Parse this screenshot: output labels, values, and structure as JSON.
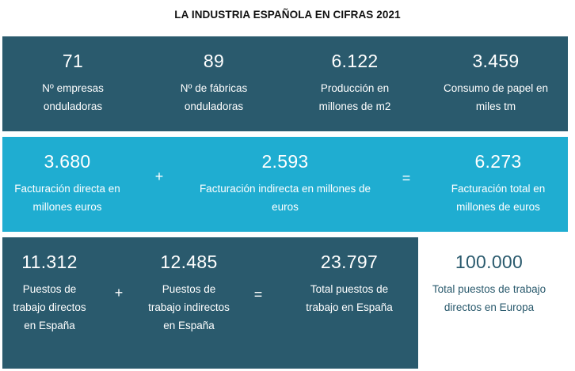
{
  "title": "LA INDUSTRIA ESPAÑOLA EN CIFRAS 2021",
  "row1": [
    {
      "value": "71",
      "label": "Nº empresas onduladoras"
    },
    {
      "value": "89",
      "label": "Nº de fábricas onduladoras"
    },
    {
      "value": "6.122",
      "label": "Producción en millones de m2"
    },
    {
      "value": "3.459",
      "label": "Consumo de papel en miles tm"
    }
  ],
  "row2": {
    "items": [
      {
        "value": "3.680",
        "label": "Facturación directa en millones euros"
      },
      {
        "value": "2.593",
        "label": "Facturación indirecta en millones de euros"
      },
      {
        "value": "6.273",
        "label": "Facturación total en millones de euros"
      }
    ],
    "op_plus": "+",
    "op_equals": "="
  },
  "row3": {
    "items": [
      {
        "value": "11.312",
        "label": "Puestos de trabajo directos en España"
      },
      {
        "value": "12.485",
        "label": "Puestos de trabajo indirectos en España"
      },
      {
        "value": "23.797",
        "label": "Total puestos de trabajo en España"
      }
    ],
    "op_plus": "+",
    "op_equals": "=",
    "europe": {
      "value": "100.000",
      "label": "Total puestos de trabajo directos en Europa"
    }
  },
  "colors": {
    "dark_band": "#2a5a6d",
    "light_band": "#1fadd1",
    "europe_text": "#2a5a6d"
  }
}
